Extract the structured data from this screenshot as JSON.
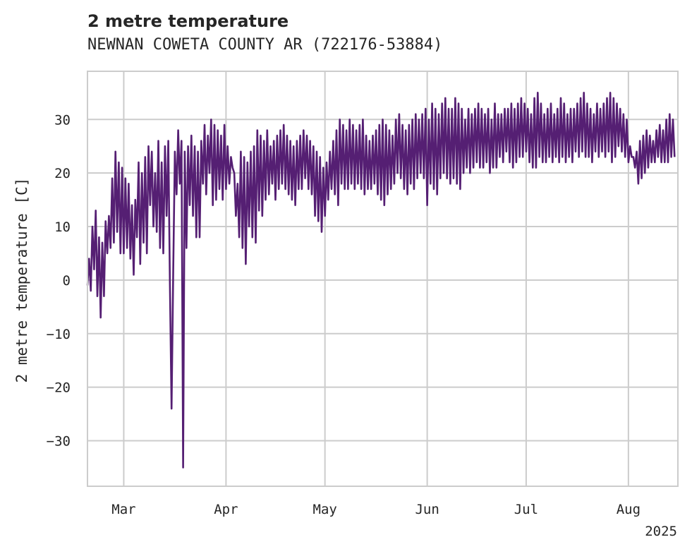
{
  "chart_data": {
    "type": "line",
    "title": "2 metre temperature",
    "subtitle": "NEWNAN COWETA COUNTY AR (722176-53884)",
    "xlabel": "",
    "ylabel": "2 metre temperature [C]",
    "year_label": "2025",
    "xlim": [
      "2025-02-18",
      "2025-08-16"
    ],
    "ylim": [
      -38.5,
      39
    ],
    "x_ticks": [
      {
        "date": "2025-03-01",
        "label": "Mar"
      },
      {
        "date": "2025-04-01",
        "label": "Apr"
      },
      {
        "date": "2025-05-01",
        "label": "May"
      },
      {
        "date": "2025-06-01",
        "label": "Jun"
      },
      {
        "date": "2025-07-01",
        "label": "Jul"
      },
      {
        "date": "2025-08-01",
        "label": "Aug"
      }
    ],
    "y_ticks": [
      -30,
      -20,
      -10,
      0,
      10,
      20,
      30
    ],
    "grid": true,
    "line_color": "#551f73",
    "series": [
      {
        "x": [
          "2025-02-18",
          "2025-02-19",
          "2025-02-20",
          "2025-02-21",
          "2025-02-22",
          "2025-02-23",
          "2025-02-24",
          "2025-02-25",
          "2025-02-26",
          "2025-02-27",
          "2025-02-28",
          "2025-03-01",
          "2025-03-02",
          "2025-03-03",
          "2025-03-04",
          "2025-03-05",
          "2025-03-06",
          "2025-03-07",
          "2025-03-08",
          "2025-03-09",
          "2025-03-10",
          "2025-03-11",
          "2025-03-12",
          "2025-03-13",
          "2025-03-14",
          "2025-03-15",
          "2025-03-16",
          "2025-03-17",
          "2025-03-18",
          "2025-03-19",
          "2025-03-20",
          "2025-03-21",
          "2025-03-22",
          "2025-03-23",
          "2025-03-24",
          "2025-03-25",
          "2025-03-26",
          "2025-03-27",
          "2025-03-28",
          "2025-03-29",
          "2025-03-30",
          "2025-03-31",
          "2025-04-01",
          "2025-04-02",
          "2025-04-03",
          "2025-04-04",
          "2025-04-05",
          "2025-04-06",
          "2025-04-07",
          "2025-04-08",
          "2025-04-09",
          "2025-04-10",
          "2025-04-11",
          "2025-04-12",
          "2025-04-13",
          "2025-04-14",
          "2025-04-15",
          "2025-04-16",
          "2025-04-17",
          "2025-04-18",
          "2025-04-19",
          "2025-04-20",
          "2025-04-21",
          "2025-04-22",
          "2025-04-23",
          "2025-04-24",
          "2025-04-25",
          "2025-04-26",
          "2025-04-27",
          "2025-04-28",
          "2025-04-29",
          "2025-04-30",
          "2025-05-01",
          "2025-05-02",
          "2025-05-03",
          "2025-05-04",
          "2025-05-05",
          "2025-05-06",
          "2025-05-07",
          "2025-05-08",
          "2025-05-09",
          "2025-05-10",
          "2025-05-11",
          "2025-05-12",
          "2025-05-13",
          "2025-05-14",
          "2025-05-15",
          "2025-05-16",
          "2025-05-17",
          "2025-05-18",
          "2025-05-19",
          "2025-05-20",
          "2025-05-21",
          "2025-05-22",
          "2025-05-23",
          "2025-05-24",
          "2025-05-25",
          "2025-05-26",
          "2025-05-27",
          "2025-05-28",
          "2025-05-29",
          "2025-05-30",
          "2025-05-31",
          "2025-06-01",
          "2025-06-02",
          "2025-06-03",
          "2025-06-04",
          "2025-06-05",
          "2025-06-06",
          "2025-06-07",
          "2025-06-08",
          "2025-06-09",
          "2025-06-10",
          "2025-06-11",
          "2025-06-12",
          "2025-06-13",
          "2025-06-14",
          "2025-06-15",
          "2025-06-16",
          "2025-06-17",
          "2025-06-18",
          "2025-06-19",
          "2025-06-20",
          "2025-06-21",
          "2025-06-22",
          "2025-06-23",
          "2025-06-24",
          "2025-06-25",
          "2025-06-26",
          "2025-06-27",
          "2025-06-28",
          "2025-06-29",
          "2025-06-30",
          "2025-07-01",
          "2025-07-02",
          "2025-07-03",
          "2025-07-04",
          "2025-07-05",
          "2025-07-06",
          "2025-07-07",
          "2025-07-08",
          "2025-07-09",
          "2025-07-10",
          "2025-07-11",
          "2025-07-12",
          "2025-07-13",
          "2025-07-14",
          "2025-07-15",
          "2025-07-16",
          "2025-07-17",
          "2025-07-18",
          "2025-07-19",
          "2025-07-20",
          "2025-07-21",
          "2025-07-22",
          "2025-07-23",
          "2025-07-24",
          "2025-07-25",
          "2025-07-26",
          "2025-07-27",
          "2025-07-28",
          "2025-07-29",
          "2025-07-30",
          "2025-07-31",
          "2025-08-01",
          "2025-08-02",
          "2025-08-03",
          "2025-08-04",
          "2025-08-05",
          "2025-08-06",
          "2025-08-07",
          "2025-08-08",
          "2025-08-09",
          "2025-08-10",
          "2025-08-11",
          "2025-08-12",
          "2025-08-13",
          "2025-08-14",
          "2025-08-15",
          "2025-08-16"
        ],
        "y_min": [
          -1,
          -2,
          2,
          -3,
          -7,
          -3,
          5,
          6,
          7,
          9,
          5,
          5,
          6,
          4,
          1,
          8,
          3,
          7,
          5,
          14,
          10,
          9,
          6,
          5,
          12,
          -1,
          2,
          16,
          18,
          -35,
          6,
          14,
          12,
          8,
          8,
          18,
          16,
          20,
          14,
          15,
          17,
          15,
          17,
          18,
          21,
          12,
          8,
          6,
          3,
          10,
          8,
          7,
          13,
          12,
          15,
          16,
          18,
          15,
          17,
          18,
          17,
          16,
          15,
          14,
          17,
          17,
          19,
          17,
          16,
          12,
          11,
          9,
          12,
          15,
          17,
          16,
          14,
          18,
          17,
          17,
          18,
          17,
          18,
          17,
          16,
          17,
          17,
          18,
          16,
          15,
          14,
          16,
          17,
          18,
          20,
          19,
          17,
          16,
          18,
          17,
          19,
          20,
          19,
          14,
          18,
          17,
          16,
          19,
          20,
          19,
          18,
          19,
          18,
          17,
          20,
          21,
          20,
          21,
          22,
          21,
          21,
          22,
          20,
          21,
          21,
          23,
          22,
          24,
          22,
          21,
          22,
          23,
          23,
          24,
          22,
          21,
          21,
          23,
          22,
          22,
          23,
          22,
          23,
          22,
          23,
          22,
          23,
          22,
          24,
          23,
          24,
          23,
          23,
          22,
          24,
          23,
          24,
          23,
          24,
          22,
          23,
          25,
          24,
          23,
          22,
          23,
          21,
          18,
          19,
          20,
          21,
          22,
          22,
          23,
          22,
          22,
          22,
          23,
          23,
          23,
          24,
          25
        ],
        "y_max": [
          4,
          10,
          13,
          8,
          7,
          11,
          12,
          19,
          24,
          22,
          21,
          19,
          18,
          14,
          15,
          22,
          20,
          23,
          25,
          24,
          20,
          26,
          22,
          25,
          26,
          -24,
          24,
          28,
          26,
          24,
          25,
          27,
          25,
          24,
          26,
          29,
          27,
          30,
          29,
          28,
          27,
          29,
          25,
          23,
          20,
          18,
          24,
          23,
          22,
          24,
          25,
          28,
          27,
          26,
          28,
          25,
          26,
          27,
          28,
          29,
          27,
          26,
          25,
          26,
          27,
          28,
          27,
          26,
          25,
          24,
          23,
          21,
          22,
          24,
          26,
          28,
          30,
          29,
          28,
          30,
          29,
          28,
          29,
          30,
          27,
          26,
          27,
          28,
          29,
          30,
          29,
          28,
          27,
          30,
          31,
          29,
          28,
          29,
          30,
          31,
          30,
          31,
          32,
          30,
          33,
          32,
          31,
          33,
          34,
          32,
          32,
          34,
          33,
          32,
          30,
          32,
          31,
          32,
          33,
          32,
          31,
          32,
          30,
          33,
          31,
          31,
          32,
          32,
          33,
          32,
          33,
          34,
          33,
          32,
          31,
          34,
          35,
          33,
          31,
          32,
          33,
          31,
          32,
          34,
          33,
          31,
          32,
          32,
          33,
          34,
          35,
          33,
          32,
          31,
          33,
          32,
          33,
          34,
          35,
          34,
          33,
          32,
          31,
          30,
          25,
          23,
          24,
          26,
          27,
          28,
          27,
          26,
          28,
          29,
          28,
          30,
          31,
          30
        ]
      }
    ]
  }
}
